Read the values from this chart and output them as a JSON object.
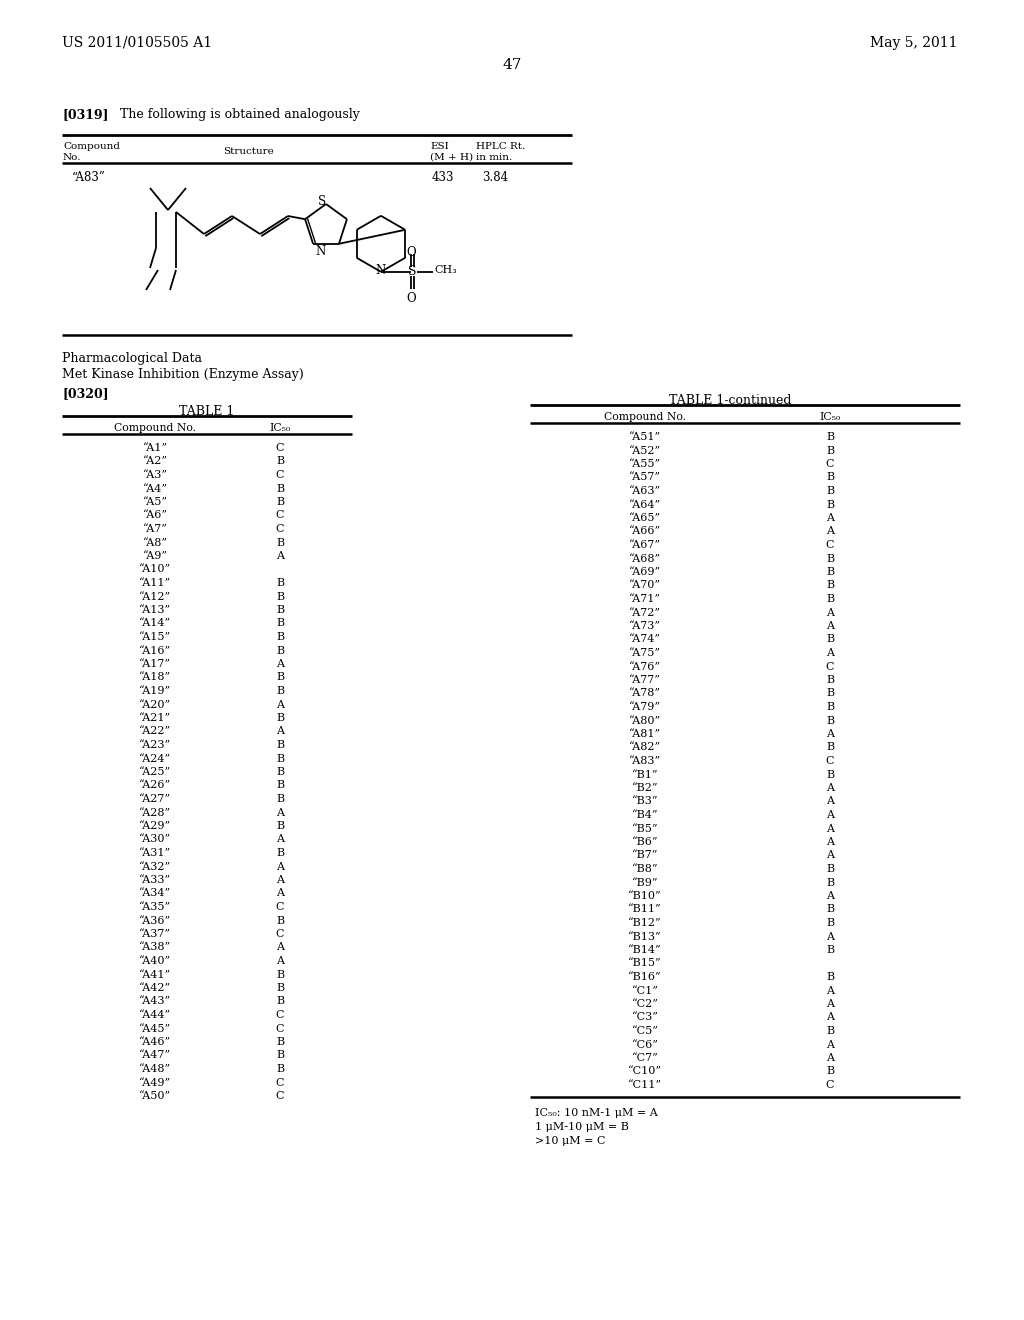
{
  "page_header_left": "US 2011/0105505 A1",
  "page_header_right": "May 5, 2011",
  "page_number": "47",
  "paragraph_label": "[0319]",
  "paragraph_text": "The following is obtained analogously",
  "compound_label": "“A83”",
  "esi_value": "433",
  "hplc_value": "3.84",
  "pharm_data_title": "Pharmacological Data",
  "met_kinase_title": "Met Kinase Inhibition (Enzyme Assay)",
  "section_label": "[0320]",
  "table1_title": "TABLE 1",
  "table2_title": "TABLE 1-continued",
  "footnote1": "IC₅₀: 10 nM-1 μM = A",
  "footnote2": "1 μM-10 μM = B",
  "footnote3": ">10 μM = C",
  "table1_data": [
    [
      "“A1”",
      "C"
    ],
    [
      "“A2”",
      "B"
    ],
    [
      "“A3”",
      "C"
    ],
    [
      "“A4”",
      "B"
    ],
    [
      "“A5”",
      "B"
    ],
    [
      "“A6”",
      "C"
    ],
    [
      "“A7”",
      "C"
    ],
    [
      "“A8”",
      "B"
    ],
    [
      "“A9”",
      "A"
    ],
    [
      "“A10”",
      ""
    ],
    [
      "“A11”",
      "B"
    ],
    [
      "“A12”",
      "B"
    ],
    [
      "“A13”",
      "B"
    ],
    [
      "“A14”",
      "B"
    ],
    [
      "“A15”",
      "B"
    ],
    [
      "“A16”",
      "B"
    ],
    [
      "“A17”",
      "A"
    ],
    [
      "“A18”",
      "B"
    ],
    [
      "“A19”",
      "B"
    ],
    [
      "“A20”",
      "A"
    ],
    [
      "“A21”",
      "B"
    ],
    [
      "“A22”",
      "A"
    ],
    [
      "“A23”",
      "B"
    ],
    [
      "“A24”",
      "B"
    ],
    [
      "“A25”",
      "B"
    ],
    [
      "“A26”",
      "B"
    ],
    [
      "“A27”",
      "B"
    ],
    [
      "“A28”",
      "A"
    ],
    [
      "“A29”",
      "B"
    ],
    [
      "“A30”",
      "A"
    ],
    [
      "“A31”",
      "B"
    ],
    [
      "“A32”",
      "A"
    ],
    [
      "“A33”",
      "A"
    ],
    [
      "“A34”",
      "A"
    ],
    [
      "“A35”",
      "C"
    ],
    [
      "“A36”",
      "B"
    ],
    [
      "“A37”",
      "C"
    ],
    [
      "“A38”",
      "A"
    ],
    [
      "“A40”",
      "A"
    ],
    [
      "“A41”",
      "B"
    ],
    [
      "“A42”",
      "B"
    ],
    [
      "“A43”",
      "B"
    ],
    [
      "“A44”",
      "C"
    ],
    [
      "“A45”",
      "C"
    ],
    [
      "“A46”",
      "B"
    ],
    [
      "“A47”",
      "B"
    ],
    [
      "“A48”",
      "B"
    ],
    [
      "“A49”",
      "C"
    ],
    [
      "“A50”",
      "C"
    ]
  ],
  "table2_data": [
    [
      "“A51”",
      "B"
    ],
    [
      "“A52”",
      "B"
    ],
    [
      "“A55”",
      "C"
    ],
    [
      "“A57”",
      "B"
    ],
    [
      "“A63”",
      "B"
    ],
    [
      "“A64”",
      "B"
    ],
    [
      "“A65”",
      "A"
    ],
    [
      "“A66”",
      "A"
    ],
    [
      "“A67”",
      "C"
    ],
    [
      "“A68”",
      "B"
    ],
    [
      "“A69”",
      "B"
    ],
    [
      "“A70”",
      "B"
    ],
    [
      "“A71”",
      "B"
    ],
    [
      "“A72”",
      "A"
    ],
    [
      "“A73”",
      "A"
    ],
    [
      "“A74”",
      "B"
    ],
    [
      "“A75”",
      "A"
    ],
    [
      "“A76”",
      "C"
    ],
    [
      "“A77”",
      "B"
    ],
    [
      "“A78”",
      "B"
    ],
    [
      "“A79”",
      "B"
    ],
    [
      "“A80”",
      "B"
    ],
    [
      "“A81”",
      "A"
    ],
    [
      "“A82”",
      "B"
    ],
    [
      "“A83”",
      "C"
    ],
    [
      "“B1”",
      "B"
    ],
    [
      "“B2”",
      "A"
    ],
    [
      "“B3”",
      "A"
    ],
    [
      "“B4”",
      "A"
    ],
    [
      "“B5”",
      "A"
    ],
    [
      "“B6”",
      "A"
    ],
    [
      "“B7”",
      "A"
    ],
    [
      "“B8”",
      "B"
    ],
    [
      "“B9”",
      "B"
    ],
    [
      "“B10”",
      "A"
    ],
    [
      "“B11”",
      "B"
    ],
    [
      "“B12”",
      "B"
    ],
    [
      "“B13”",
      "A"
    ],
    [
      "“B14”",
      "B"
    ],
    [
      "“B15”",
      ""
    ],
    [
      "“B16”",
      "B"
    ],
    [
      "“C1”",
      "A"
    ],
    [
      "“C2”",
      "A"
    ],
    [
      "“C3”",
      "A"
    ],
    [
      "“C5”",
      "B"
    ],
    [
      "“C6”",
      "A"
    ],
    [
      "“C7”",
      "A"
    ],
    [
      "“C10”",
      "B"
    ],
    [
      "“C11”",
      "C"
    ]
  ]
}
